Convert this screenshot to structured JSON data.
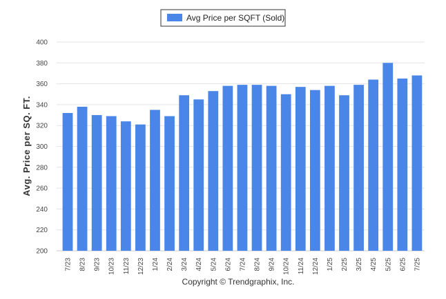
{
  "chart_data": {
    "type": "bar",
    "title": "",
    "xlabel": "",
    "ylabel": "Avg. Price per SQ. FT.",
    "ylim": [
      200,
      400
    ],
    "yticks": [
      200,
      220,
      240,
      260,
      280,
      300,
      320,
      340,
      360,
      380,
      400
    ],
    "grid": true,
    "legend_position": "top-center",
    "categories": [
      "7/23",
      "8/23",
      "9/23",
      "10/23",
      "11/23",
      "12/23",
      "1/24",
      "2/24",
      "3/24",
      "4/24",
      "5/24",
      "6/24",
      "7/24",
      "8/24",
      "9/24",
      "10/24",
      "11/24",
      "12/24",
      "1/25",
      "2/25",
      "3/25",
      "4/25",
      "5/25",
      "6/25",
      "7/25"
    ],
    "series": [
      {
        "name": "Avg Price per SQFT (Sold)",
        "color": "#4a86e8",
        "values": [
          332,
          338,
          330,
          329,
          324,
          321,
          335,
          329,
          349,
          345,
          353,
          358,
          359,
          359,
          358,
          350,
          357,
          354,
          358,
          349,
          359,
          364,
          380,
          365,
          368
        ]
      }
    ]
  },
  "footer": {
    "copyright": "Copyright © Trendgraphix, Inc."
  },
  "colors": {
    "bar": "#4a86e8",
    "grid": "#e3e3e3",
    "axis": "#c9c9c9",
    "legend_border": "#333333"
  }
}
